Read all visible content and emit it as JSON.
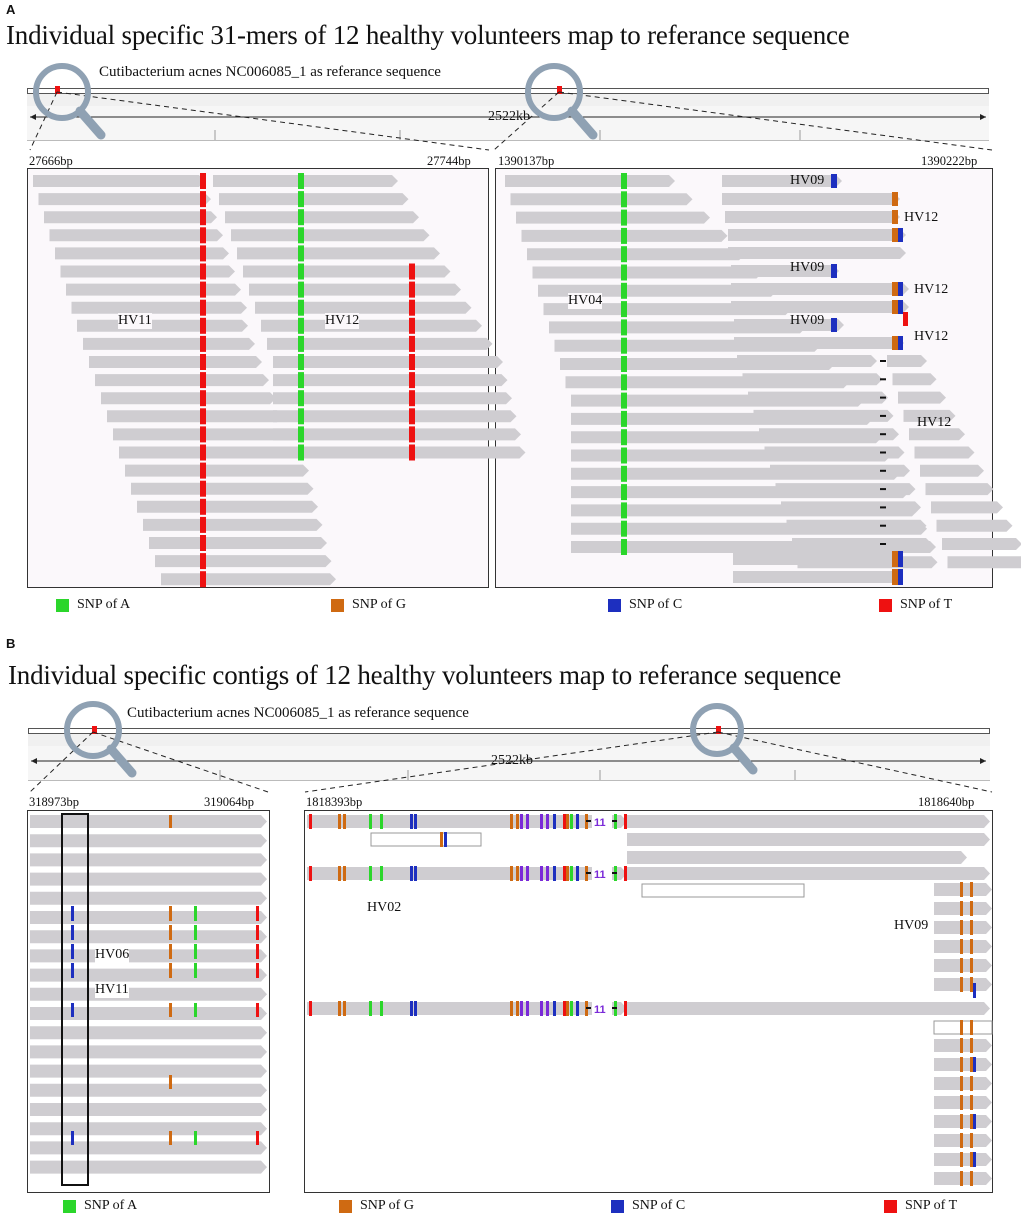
{
  "colors": {
    "snp_a": "#2bd62b",
    "snp_g": "#cf6a12",
    "snp_c": "#1d2fbf",
    "snp_t": "#ee1111",
    "read": "#cfcdd1",
    "lens": "#8fa1b3",
    "purple": "#7a2ad8"
  },
  "panel_a": {
    "letter": "A",
    "title": "Individual specific 31-mers of 12 healthy volunteers map to referance sequence",
    "reference_label": "Cutibacterium acnes NC006085_1 as referance sequence",
    "scale_label": "2522kb",
    "left_view": {
      "start": "27666bp",
      "end": "27744bp",
      "labels": [
        "HV11",
        "HV12"
      ]
    },
    "right_view": {
      "start": "1390137bp",
      "end": "1390222bp",
      "labels": [
        "HV09",
        "HV12",
        "HV09",
        "HV12",
        "HV04",
        "HV09",
        "HV12",
        "HV12"
      ]
    },
    "legend": [
      "SNP of A",
      "SNP of G",
      "SNP of C",
      "SNP of T"
    ]
  },
  "panel_b": {
    "letter": "B",
    "title": "Individual specific contigs of 12 healthy volunteers map to referance sequence",
    "reference_label": "Cutibacterium acnes NC006085_1 as referance sequence",
    "scale_label": "2522kb",
    "left_view": {
      "start": "318973bp",
      "end": "319064bp",
      "labels": [
        "HV06",
        "HV11"
      ]
    },
    "right_view": {
      "start": "1818393bp",
      "end": "1818640bp",
      "labels": [
        "HV02",
        "HV09"
      ],
      "insertion_text": "11"
    },
    "legend": [
      "SNP of A",
      "SNP of G",
      "SNP of C",
      "SNP of T"
    ]
  }
}
